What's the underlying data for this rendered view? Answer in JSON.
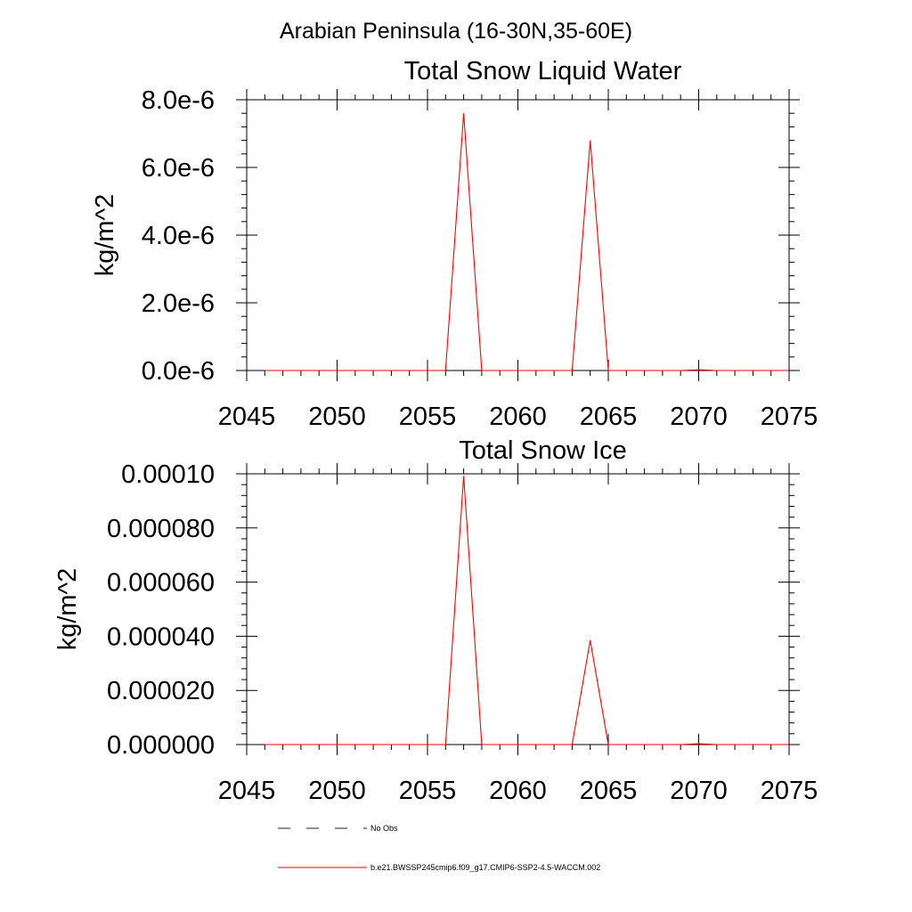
{
  "figure": {
    "title": "Arabian Peninsula (16-30N,35-60E)"
  },
  "chart_data": [
    {
      "type": "line",
      "title": "Total Snow Liquid Water",
      "xlabel": "",
      "ylabel": "kg/m^2",
      "xlim": [
        2045,
        2075
      ],
      "ylim": [
        0,
        8e-06
      ],
      "xticks": [
        2045,
        2050,
        2055,
        2060,
        2065,
        2070,
        2075
      ],
      "xtick_labels": [
        "2045",
        "2050",
        "2055",
        "2060",
        "2065",
        "2070",
        "2075"
      ],
      "yticks": [
        0,
        2e-06,
        4e-06,
        6e-06,
        8e-06
      ],
      "ytick_labels": [
        "0.0e-6",
        "2.0e-6",
        "4.0e-6",
        "6.0e-6",
        "8.0e-6"
      ],
      "grid": false,
      "series": [
        {
          "name": "b.e21.BWSSP245cmip6.f09_g17.CMIP6-SSP2-4.5-WACCM.002",
          "color": "#ff0000",
          "x": [
            2046,
            2047,
            2048,
            2049,
            2050,
            2051,
            2052,
            2053,
            2054,
            2055,
            2056,
            2057,
            2058,
            2059,
            2060,
            2061,
            2062,
            2063,
            2064,
            2065,
            2066,
            2067,
            2068,
            2069,
            2070,
            2071,
            2072,
            2073,
            2074,
            2075
          ],
          "values": [
            0,
            0,
            0,
            0,
            0,
            0,
            0,
            0,
            0,
            0,
            0,
            7.6e-06,
            0,
            0,
            0,
            0,
            0,
            0,
            6.8e-06,
            0,
            0,
            0,
            0,
            0,
            2e-08,
            0,
            0,
            0,
            0,
            0
          ]
        }
      ]
    },
    {
      "type": "line",
      "title": "Total Snow Ice",
      "xlabel": "",
      "ylabel": "kg/m^2",
      "xlim": [
        2045,
        2075
      ],
      "ylim": [
        0,
        0.0001
      ],
      "xticks": [
        2045,
        2050,
        2055,
        2060,
        2065,
        2070,
        2075
      ],
      "xtick_labels": [
        "2045",
        "2050",
        "2055",
        "2060",
        "2065",
        "2070",
        "2075"
      ],
      "yticks": [
        0,
        2e-05,
        4e-05,
        6e-05,
        8e-05,
        0.0001
      ],
      "ytick_labels": [
        "0.000000",
        "0.000020",
        "0.000040",
        "0.000060",
        "0.000080",
        "0.00010"
      ],
      "grid": false,
      "series": [
        {
          "name": "b.e21.BWSSP245cmip6.f09_g17.CMIP6-SSP2-4.5-WACCM.002",
          "color": "#ff0000",
          "x": [
            2046,
            2047,
            2048,
            2049,
            2050,
            2051,
            2052,
            2053,
            2054,
            2055,
            2056,
            2057,
            2058,
            2059,
            2060,
            2061,
            2062,
            2063,
            2064,
            2065,
            2066,
            2067,
            2068,
            2069,
            2070,
            2071,
            2072,
            2073,
            2074,
            2075
          ],
          "values": [
            0,
            0,
            0,
            0,
            0,
            0,
            0,
            0,
            0,
            0,
            0,
            9.92e-05,
            0,
            0,
            0,
            0,
            0,
            0,
            3.85e-05,
            0,
            0,
            0,
            0,
            0,
            3e-07,
            0,
            0,
            0,
            0,
            0
          ]
        }
      ]
    }
  ],
  "legend": {
    "placement": "bottom-center",
    "entries": [
      {
        "label": "No Obs",
        "color": "#1a1a66",
        "style": "dashed"
      },
      {
        "label": "b.e21.BWSSP245cmip6.f09_g17.CMIP6-SSP2-4.5-WACCM.002",
        "color": "#ff0000",
        "style": "solid"
      }
    ]
  }
}
